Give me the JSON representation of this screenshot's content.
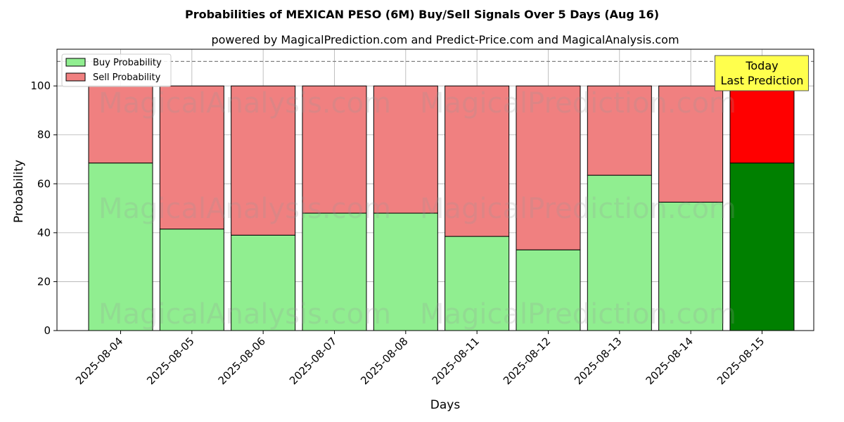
{
  "chart_data": {
    "type": "bar",
    "stacked": true,
    "title": "Probabilities of MEXICAN PESO (6M) Buy/Sell Signals Over 5 Days (Aug 16)",
    "subtitle": "powered by MagicalPrediction.com and Predict-Price.com and MagicalAnalysis.com",
    "xlabel": "Days",
    "ylabel": "Probability",
    "ylim": [
      0,
      115
    ],
    "yticks": [
      0,
      20,
      40,
      60,
      80,
      100
    ],
    "reference_line": 110,
    "grid": true,
    "legend_position": "top-left",
    "categories": [
      "2025-08-04",
      "2025-08-05",
      "2025-08-06",
      "2025-08-07",
      "2025-08-08",
      "2025-08-11",
      "2025-08-12",
      "2025-08-13",
      "2025-08-14",
      "2025-08-15"
    ],
    "series": [
      {
        "name": "Buy Probability",
        "color": "#90ee90",
        "highlight_color": "#008000",
        "values": [
          68.5,
          41.5,
          39,
          48,
          48,
          38.5,
          33,
          63.5,
          52.5,
          68.5
        ]
      },
      {
        "name": "Sell Probability",
        "color": "#f08080",
        "highlight_color": "#ff0000",
        "values": [
          31.5,
          58.5,
          61,
          52,
          52,
          61.5,
          67,
          36.5,
          47.5,
          31.5
        ]
      }
    ],
    "highlight_index": 9,
    "annotation": {
      "lines": [
        "Today",
        "Last Prediction"
      ],
      "bg_color": "#ffff4d"
    },
    "watermarks": [
      "MagicalAnalysis.com",
      "MagicalPrediction.com"
    ]
  }
}
